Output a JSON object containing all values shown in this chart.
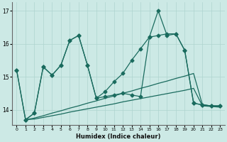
{
  "xlabel": "Humidex (Indice chaleur)",
  "xlim": [
    -0.5,
    23.5
  ],
  "ylim": [
    13.55,
    17.25
  ],
  "yticks": [
    14,
    15,
    16,
    17
  ],
  "xticks": [
    0,
    1,
    2,
    3,
    4,
    5,
    6,
    7,
    8,
    9,
    10,
    11,
    12,
    13,
    14,
    15,
    16,
    17,
    18,
    19,
    20,
    21,
    22,
    23
  ],
  "background_color": "#cce9e5",
  "line_color": "#1a6b5e",
  "grid_color": "#aed4cf",
  "jagged_line": {
    "x": [
      0,
      1,
      2,
      3,
      4,
      5,
      6,
      7,
      8,
      9,
      10,
      11,
      12,
      13,
      14,
      15,
      16,
      17,
      18,
      19,
      20,
      21,
      22,
      23
    ],
    "y": [
      15.2,
      13.7,
      13.9,
      15.3,
      15.05,
      15.35,
      16.1,
      16.25,
      15.35,
      14.35,
      14.4,
      14.45,
      14.5,
      14.45,
      14.4,
      16.2,
      17.0,
      16.25,
      16.3,
      15.8,
      14.2,
      14.15,
      14.12,
      14.12
    ]
  },
  "trend_line1": {
    "x": [
      1,
      2,
      3,
      4,
      5,
      6,
      7,
      8,
      9,
      10,
      11,
      12,
      13,
      14,
      15,
      16,
      17,
      18,
      19,
      20,
      21,
      22,
      23
    ],
    "y": [
      13.7,
      13.75,
      13.82,
      13.9,
      13.97,
      14.05,
      14.12,
      14.2,
      14.27,
      14.35,
      14.42,
      14.5,
      14.57,
      14.65,
      14.72,
      14.8,
      14.87,
      14.95,
      15.02,
      15.1,
      14.15,
      14.12,
      14.1
    ]
  },
  "trend_line2": {
    "x": [
      1,
      2,
      3,
      4,
      5,
      6,
      7,
      8,
      9,
      10,
      11,
      12,
      13,
      14,
      15,
      16,
      17,
      18,
      19,
      20,
      21,
      22,
      23
    ],
    "y": [
      13.7,
      13.72,
      13.77,
      13.82,
      13.87,
      13.93,
      13.98,
      14.03,
      14.08,
      14.13,
      14.18,
      14.24,
      14.29,
      14.34,
      14.39,
      14.44,
      14.49,
      14.54,
      14.59,
      14.65,
      14.12,
      14.1,
      14.08
    ]
  },
  "upper_line": {
    "x": [
      0,
      1,
      2,
      3,
      4,
      5,
      6,
      7,
      8,
      9,
      10,
      11,
      12,
      13,
      14,
      15,
      16,
      17,
      18,
      19,
      20,
      21,
      22,
      23
    ],
    "y": [
      15.2,
      13.7,
      13.9,
      15.3,
      15.05,
      15.35,
      16.1,
      16.25,
      15.35,
      14.35,
      14.55,
      14.85,
      15.1,
      15.5,
      15.85,
      16.2,
      16.25,
      16.3,
      16.3,
      15.8,
      14.2,
      14.15,
      14.12,
      14.12
    ]
  }
}
